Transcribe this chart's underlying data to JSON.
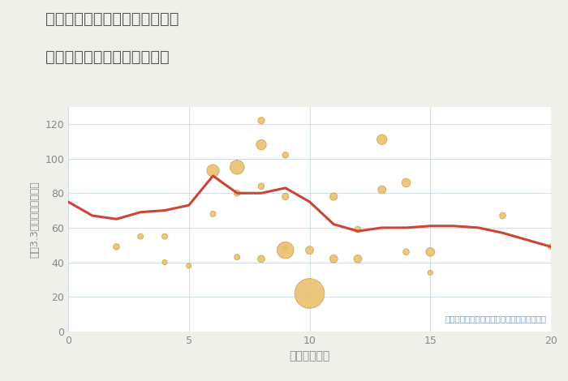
{
  "title_line1": "愛知県稲沢市祖父江町拾町野の",
  "title_line2": "駅距離別中古マンション価格",
  "xlabel": "駅距離（分）",
  "ylabel": "坪（3.3㎡）単価（万円）",
  "note": "円の大きさは、取引のあった物件面積を示す",
  "background_color": "#f0f0eb",
  "plot_bg_color": "#ffffff",
  "line_color": "#cc4433",
  "scatter_color": "#e8c06a",
  "scatter_edge_color": "#c8a050",
  "xlim": [
    0,
    20
  ],
  "ylim": [
    0,
    130
  ],
  "xticks": [
    0,
    5,
    10,
    15,
    20
  ],
  "yticks": [
    0,
    20,
    40,
    60,
    80,
    100,
    120
  ],
  "line_x": [
    0,
    1,
    2,
    3,
    4,
    5,
    6,
    7,
    8,
    9,
    10,
    11,
    12,
    13,
    14,
    15,
    16,
    17,
    18,
    19,
    20
  ],
  "line_y": [
    75,
    67,
    65,
    69,
    70,
    73,
    90,
    80,
    80,
    83,
    75,
    62,
    58,
    60,
    60,
    61,
    61,
    60,
    57,
    53,
    49
  ],
  "scatter_x": [
    2,
    3,
    4,
    4,
    5,
    6,
    6,
    7,
    7,
    7,
    8,
    8,
    8,
    8,
    9,
    9,
    9,
    9,
    10,
    10,
    11,
    11,
    12,
    12,
    13,
    13,
    14,
    14,
    15,
    15,
    18,
    20
  ],
  "scatter_y": [
    49,
    55,
    40,
    55,
    38,
    93,
    68,
    95,
    80,
    43,
    122,
    108,
    84,
    42,
    102,
    78,
    48,
    47,
    22,
    47,
    78,
    42,
    59,
    42,
    111,
    82,
    86,
    46,
    34,
    46,
    67,
    49
  ],
  "scatter_size": [
    30,
    25,
    20,
    25,
    20,
    120,
    25,
    160,
    30,
    25,
    35,
    80,
    30,
    40,
    30,
    35,
    25,
    220,
    700,
    50,
    45,
    50,
    30,
    50,
    80,
    50,
    60,
    30,
    20,
    60,
    30,
    25
  ]
}
